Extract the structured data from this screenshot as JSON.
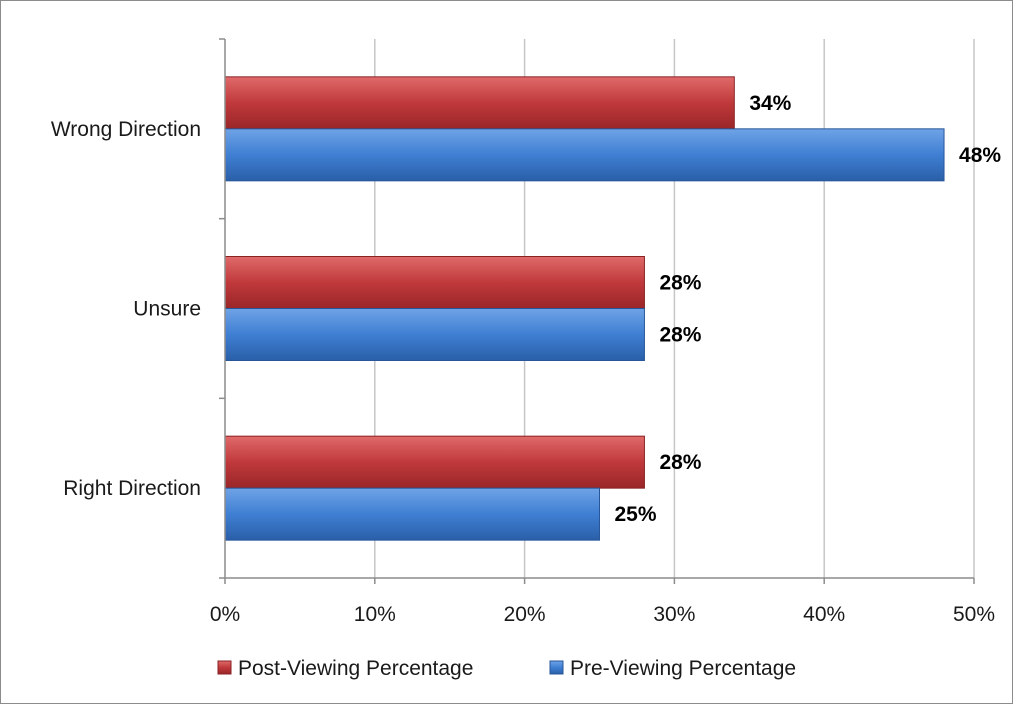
{
  "chart_data": {
    "type": "bar",
    "orientation": "horizontal",
    "categories": [
      "Wrong Direction",
      "Unsure",
      "Right Direction"
    ],
    "series": [
      {
        "name": "Post-Viewing Percentage",
        "values": [
          34,
          28,
          28
        ],
        "labels": [
          "34%",
          "28%",
          "28%"
        ],
        "color": "#c0393b"
      },
      {
        "name": "Pre-Viewing Percentage",
        "values": [
          48,
          28,
          25
        ],
        "labels": [
          "48%",
          "28%",
          "25%"
        ],
        "color": "#3f7fd3"
      }
    ],
    "x_ticks": [
      "0%",
      "10%",
      "20%",
      "30%",
      "40%",
      "50%"
    ],
    "xlim": [
      0,
      50
    ],
    "grid": "vertical",
    "legend_position": "bottom",
    "title": "",
    "xlabel": "",
    "ylabel": ""
  }
}
